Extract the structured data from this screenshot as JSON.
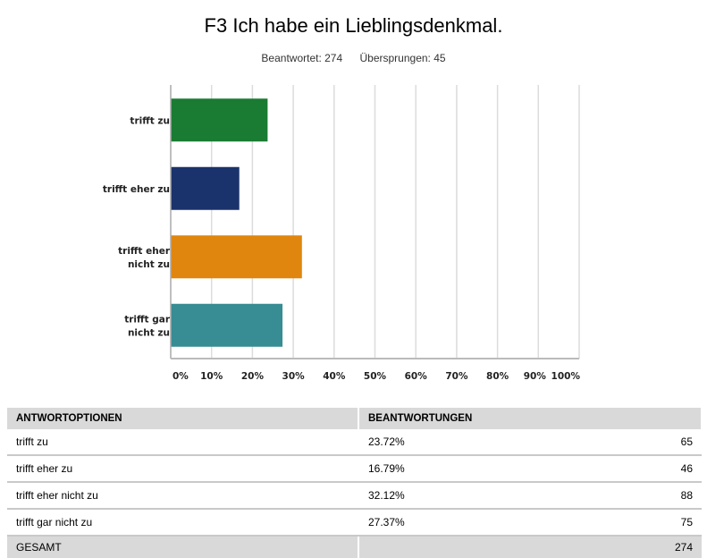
{
  "header": {
    "title": "F3 Ich habe ein Lieblingsdenkmal.",
    "answered_label": "Beantwortet: 274",
    "skipped_label": "Übersprungen: 45"
  },
  "chart_data": {
    "type": "bar",
    "orientation": "horizontal",
    "title": "F3 Ich habe ein Lieblingsdenkmal.",
    "categories": [
      [
        "trifft zu"
      ],
      [
        "trifft eher zu"
      ],
      [
        "trifft eher",
        "nicht zu"
      ],
      [
        "trifft gar",
        "nicht zu"
      ]
    ],
    "values": [
      23.72,
      16.79,
      32.12,
      27.37
    ],
    "colors": [
      "#1a7b32",
      "#1b336c",
      "#e0860f",
      "#388c93"
    ],
    "xlabel": "",
    "ylabel": "",
    "xlim": [
      0,
      100
    ],
    "ticks": [
      "0%",
      "10%",
      "20%",
      "30%",
      "40%",
      "50%",
      "60%",
      "70%",
      "80%",
      "90%",
      "100%"
    ],
    "grid": true,
    "legend": "none"
  },
  "table": {
    "headers": [
      "ANTWORTOPTIONEN",
      "BEANTWORTUNGEN"
    ],
    "rows": [
      {
        "option": "trifft zu",
        "percent": "23.72%",
        "count": "65"
      },
      {
        "option": "trifft eher zu",
        "percent": "16.79%",
        "count": "46"
      },
      {
        "option": "trifft eher nicht zu",
        "percent": "32.12%",
        "count": "88"
      },
      {
        "option": "trifft gar nicht zu",
        "percent": "27.37%",
        "count": "75"
      }
    ],
    "total_label": "GESAMT",
    "total_count": "274"
  }
}
